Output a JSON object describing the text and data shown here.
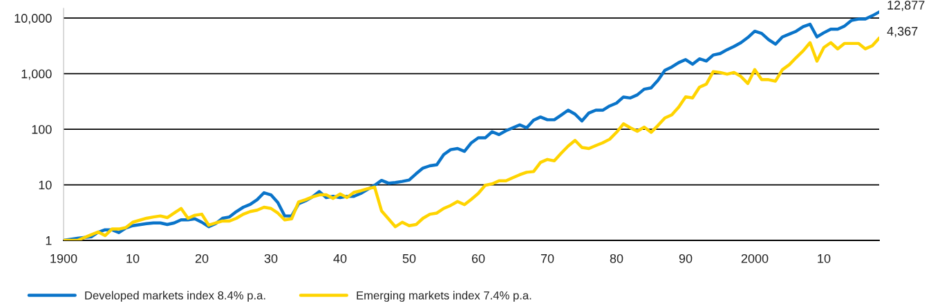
{
  "chart_data": {
    "type": "line",
    "x": [
      1900,
      1902,
      1904,
      1905,
      1906,
      1907,
      1908,
      1909,
      1910,
      1912,
      1913,
      1914,
      1915,
      1916,
      1917,
      1918,
      1919,
      1920,
      1921,
      1922,
      1923,
      1924,
      1925,
      1926,
      1927,
      1928,
      1929,
      1930,
      1931,
      1932,
      1933,
      1934,
      1935,
      1936,
      1937,
      1938,
      1939,
      1940,
      1941,
      1942,
      1943,
      1944,
      1945,
      1946,
      1947,
      1948,
      1949,
      1950,
      1951,
      1952,
      1953,
      1954,
      1955,
      1956,
      1957,
      1958,
      1959,
      1960,
      1961,
      1962,
      1963,
      1964,
      1965,
      1966,
      1967,
      1968,
      1969,
      1970,
      1971,
      1972,
      1973,
      1974,
      1975,
      1976,
      1977,
      1978,
      1979,
      1980,
      1981,
      1982,
      1983,
      1984,
      1985,
      1986,
      1987,
      1988,
      1989,
      1990,
      1991,
      1992,
      1993,
      1994,
      1995,
      1996,
      1997,
      1998,
      1999,
      2000,
      2001,
      2002,
      2003,
      2004,
      2005,
      2006,
      2007,
      2008,
      2009,
      2010,
      2011,
      2012,
      2013,
      2014,
      2015,
      2016,
      2017,
      2018
    ],
    "series": [
      {
        "name": "Developed markets index 8.4% p.a.",
        "color": "#0a74c9",
        "values": [
          1.0,
          1.09,
          1.16,
          1.4,
          1.55,
          1.55,
          1.38,
          1.67,
          1.84,
          2.0,
          2.06,
          2.06,
          1.93,
          2.06,
          2.34,
          2.34,
          2.45,
          2.12,
          1.76,
          2.0,
          2.5,
          2.64,
          3.3,
          3.95,
          4.45,
          5.4,
          7.2,
          6.6,
          4.8,
          2.75,
          2.75,
          4.55,
          5.15,
          6.05,
          7.55,
          5.9,
          6.2,
          5.9,
          6.2,
          6.2,
          7.0,
          8.3,
          9.8,
          12.0,
          10.7,
          11,
          11.5,
          12.2,
          15.8,
          20,
          22,
          23,
          35,
          43,
          45,
          40,
          57,
          70,
          70,
          90,
          80,
          94,
          106,
          120,
          106,
          145,
          166,
          148,
          148,
          180,
          220,
          187,
          141,
          196,
          220,
          220,
          262,
          295,
          380,
          365,
          415,
          525,
          555,
          760,
          1150,
          1320,
          1580,
          1790,
          1480,
          1850,
          1690,
          2170,
          2300,
          2700,
          3080,
          3610,
          4470,
          5800,
          5300,
          4100,
          3390,
          4580,
          5150,
          5800,
          7000,
          7750,
          4580,
          5450,
          6300,
          6300,
          7200,
          9100,
          9600,
          9600,
          11000,
          12877
        ]
      },
      {
        "name": "Emerging markets index 7.4% p.a.",
        "color": "#ffd400",
        "values": [
          1.0,
          1.0,
          1.26,
          1.42,
          1.22,
          1.6,
          1.6,
          1.7,
          2.12,
          2.5,
          2.64,
          2.75,
          2.57,
          3.1,
          3.76,
          2.5,
          2.83,
          2.96,
          1.88,
          2.06,
          2.23,
          2.23,
          2.5,
          2.96,
          3.3,
          3.5,
          3.95,
          3.76,
          3.1,
          2.34,
          2.45,
          4.9,
          5.4,
          6.05,
          6.6,
          6.6,
          5.7,
          6.85,
          5.9,
          7.3,
          7.8,
          8.5,
          9.1,
          3.4,
          2.45,
          1.76,
          2.12,
          1.84,
          1.93,
          2.5,
          2.96,
          3.1,
          3.76,
          4.25,
          5.0,
          4.4,
          5.5,
          7.0,
          9.8,
          10.4,
          11.8,
          11.8,
          13.4,
          15.2,
          16.8,
          17.3,
          25.3,
          28.6,
          27,
          37,
          49.7,
          63,
          47,
          45,
          50.7,
          57,
          66,
          88,
          125,
          106,
          92,
          109,
          88,
          117,
          160,
          182,
          250,
          383,
          366,
          570,
          650,
          1090,
          1050,
          980,
          1050,
          890,
          665,
          1180,
          780,
          780,
          733,
          1180,
          1450,
          1950,
          2570,
          3610,
          1680,
          2960,
          3610,
          2790,
          3500,
          3500,
          3500,
          2800,
          3180,
          4367
        ]
      }
    ],
    "annotations": [
      {
        "text": "12,877",
        "x": 2018,
        "y": 12877
      },
      {
        "text": "4,367",
        "x": 2018,
        "y": 4367
      }
    ],
    "log": "y",
    "xlim": [
      1900,
      2018
    ],
    "ylim": [
      1,
      15000
    ],
    "xticks": [
      1900,
      {
        "value": 1910,
        "label": "10"
      },
      {
        "value": 1920,
        "label": "20"
      },
      {
        "value": 1930,
        "label": "30"
      },
      {
        "value": 1940,
        "label": "40"
      },
      {
        "value": 1950,
        "label": "50"
      },
      {
        "value": 1960,
        "label": "60"
      },
      {
        "value": 1970,
        "label": "70"
      },
      {
        "value": 1980,
        "label": "80"
      },
      {
        "value": 1990,
        "label": "90"
      },
      2000,
      {
        "value": 2010,
        "label": "10"
      }
    ],
    "yticks": [
      1,
      10,
      100,
      {
        "value": 1000,
        "label": "1,000"
      },
      {
        "value": 10000,
        "label": "10,000"
      }
    ],
    "grid": "y",
    "legend": "bottom left",
    "marker": "none",
    "line_style": "solid"
  }
}
